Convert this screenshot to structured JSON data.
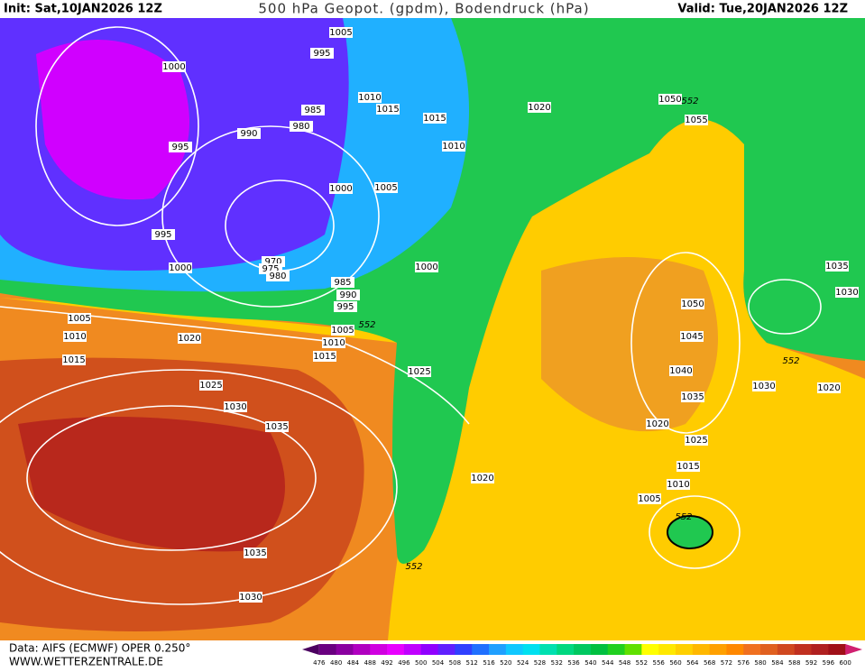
{
  "header": {
    "init": "Init: Sat,10JAN2026 12Z",
    "title": "500 hPa Geopot. (gpdm), Bodendruck (hPa)",
    "valid": "Valid: Tue,20JAN2026 12Z"
  },
  "footer": {
    "source": "Data: AIFS (ECMWF) OPER 0.250°",
    "site": "WWW.WETTERZENTRALE.DE"
  },
  "colorbar": {
    "ticks": [
      476,
      480,
      484,
      488,
      492,
      496,
      500,
      504,
      508,
      512,
      516,
      520,
      524,
      528,
      532,
      536,
      540,
      544,
      548,
      552,
      556,
      560,
      564,
      568,
      572,
      576,
      580,
      584,
      588,
      592,
      596,
      600
    ],
    "colors": [
      "#4b0060",
      "#6a0080",
      "#8a00a0",
      "#b000c0",
      "#d000e0",
      "#e800ff",
      "#c000ff",
      "#9000ff",
      "#6020ff",
      "#3040ff",
      "#2070ff",
      "#20a0ff",
      "#10c8ff",
      "#00e0f0",
      "#00e0b0",
      "#00d880",
      "#00c860",
      "#00c040",
      "#20d020",
      "#60e000",
      "#ffff00",
      "#ffe800",
      "#ffd000",
      "#ffb800",
      "#ffa000",
      "#ff8800",
      "#f07020",
      "#e06020",
      "#d04820",
      "#c03020",
      "#b02020",
      "#a01018",
      "#d02070"
    ]
  },
  "isobar_labels": [
    1005,
    995,
    1000,
    1010,
    1015,
    1015,
    1020,
    1050,
    1055,
    985,
    980,
    990,
    995,
    1010,
    1000,
    1005,
    995,
    1000,
    1000,
    985,
    990,
    995,
    1035,
    1030,
    1050,
    1005,
    1005,
    1010,
    1020,
    1010,
    1045,
    1015,
    1015,
    1040,
    1025,
    1030,
    1020,
    1025,
    1035,
    1030,
    1020,
    1035,
    1025,
    1015,
    1020,
    1010,
    1005,
    1035,
    1030,
    970,
    975,
    980
  ],
  "height_labels": [
    552,
    552,
    552,
    552,
    552
  ]
}
